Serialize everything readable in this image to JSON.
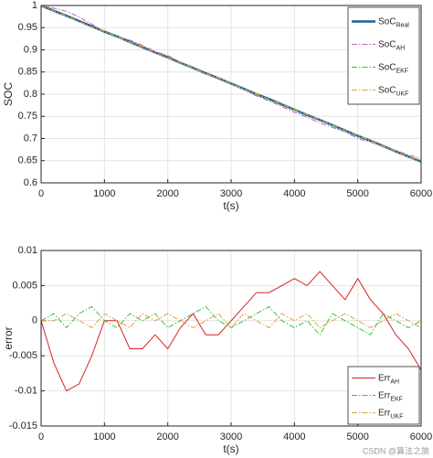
{
  "chart_data": [
    {
      "type": "line",
      "ylabel": "SOC",
      "xlabel": "t(s)",
      "x": [
        0,
        200,
        400,
        600,
        800,
        1000,
        1200,
        1400,
        1600,
        1800,
        2000,
        2200,
        2400,
        2600,
        2800,
        3000,
        3200,
        3400,
        3600,
        3800,
        4000,
        4200,
        4400,
        4600,
        4800,
        5000,
        5200,
        5400,
        5600,
        5800,
        6000
      ],
      "xlim": [
        0,
        6000
      ],
      "xticks": [
        0,
        1000,
        2000,
        3000,
        4000,
        5000,
        6000
      ],
      "ylim": [
        0.6,
        1
      ],
      "yticks": [
        0.6,
        0.65,
        0.7,
        0.75,
        0.8,
        0.85,
        0.9,
        0.95,
        1
      ],
      "grid": true,
      "legend": "upper right",
      "series": [
        {
          "name": "SoC",
          "sub": "Real",
          "color": "#1f5f9a",
          "style": "solid",
          "width": 2.5,
          "values": [
            1.0,
            0.988,
            0.977,
            0.965,
            0.953,
            0.941,
            0.93,
            0.918,
            0.906,
            0.894,
            0.883,
            0.871,
            0.859,
            0.847,
            0.836,
            0.824,
            0.812,
            0.8,
            0.789,
            0.777,
            0.765,
            0.753,
            0.742,
            0.73,
            0.718,
            0.706,
            0.695,
            0.683,
            0.671,
            0.659,
            0.648
          ]
        },
        {
          "name": "SoC",
          "sub": "AH",
          "color": "#c05ec8",
          "style": "dashdot",
          "width": 1,
          "values": [
            1.0,
            0.994,
            0.987,
            0.974,
            0.958,
            0.941,
            0.93,
            0.922,
            0.91,
            0.896,
            0.887,
            0.872,
            0.858,
            0.849,
            0.838,
            0.824,
            0.81,
            0.796,
            0.785,
            0.772,
            0.759,
            0.748,
            0.735,
            0.725,
            0.715,
            0.7,
            0.692,
            0.682,
            0.673,
            0.663,
            0.655
          ]
        },
        {
          "name": "SoC",
          "sub": "EKF",
          "color": "#33c433",
          "style": "dashdot",
          "width": 1,
          "values": [
            1.0,
            0.987,
            0.978,
            0.964,
            0.951,
            0.941,
            0.931,
            0.917,
            0.906,
            0.893,
            0.884,
            0.871,
            0.858,
            0.845,
            0.836,
            0.825,
            0.812,
            0.799,
            0.787,
            0.777,
            0.766,
            0.753,
            0.744,
            0.729,
            0.718,
            0.707,
            0.697,
            0.682,
            0.671,
            0.66,
            0.648
          ]
        },
        {
          "name": "SoC",
          "sub": "UKF",
          "color": "#e0a040",
          "style": "dashdot",
          "width": 1,
          "values": [
            1.0,
            0.988,
            0.976,
            0.964,
            0.952,
            0.942,
            0.929,
            0.918,
            0.907,
            0.894,
            0.882,
            0.872,
            0.859,
            0.846,
            0.837,
            0.824,
            0.811,
            0.801,
            0.788,
            0.778,
            0.764,
            0.754,
            0.742,
            0.731,
            0.717,
            0.707,
            0.694,
            0.684,
            0.671,
            0.658,
            0.649
          ]
        }
      ]
    },
    {
      "type": "line",
      "ylabel": "error",
      "xlabel": "t(s)",
      "x": [
        0,
        200,
        400,
        600,
        800,
        1000,
        1200,
        1400,
        1600,
        1800,
        2000,
        2200,
        2400,
        2600,
        2800,
        3000,
        3200,
        3400,
        3600,
        3800,
        4000,
        4200,
        4400,
        4600,
        4800,
        5000,
        5200,
        5400,
        5600,
        5800,
        6000
      ],
      "xlim": [
        0,
        6000
      ],
      "xticks": [
        0,
        1000,
        2000,
        3000,
        4000,
        5000,
        6000
      ],
      "ylim": [
        -0.015,
        0.01
      ],
      "yticks": [
        -0.015,
        -0.01,
        -0.005,
        0,
        0.005,
        0.01
      ],
      "grid": true,
      "legend": "lower right",
      "series": [
        {
          "name": "Err",
          "sub": "AH",
          "color": "#d62222",
          "style": "solid",
          "width": 1,
          "values": [
            0,
            -0.006,
            -0.01,
            -0.009,
            -0.005,
            0.0,
            0.0,
            -0.004,
            -0.004,
            -0.002,
            -0.004,
            -0.001,
            0.001,
            -0.002,
            -0.002,
            0.0,
            0.002,
            0.004,
            0.004,
            0.005,
            0.006,
            0.005,
            0.007,
            0.005,
            0.003,
            0.006,
            0.003,
            0.001,
            -0.002,
            -0.004,
            -0.007
          ]
        },
        {
          "name": "Err",
          "sub": "EKF",
          "color": "#33c433",
          "style": "dashdot",
          "width": 1,
          "values": [
            0,
            0.001,
            -0.001,
            0.001,
            0.002,
            0.0,
            -0.001,
            0.001,
            0.0,
            0.001,
            -0.001,
            0.0,
            0.001,
            0.002,
            0.0,
            -0.001,
            0.0,
            0.001,
            0.002,
            0.0,
            -0.001,
            0.0,
            -0.002,
            0.001,
            0.0,
            -0.001,
            -0.002,
            0.001,
            0.0,
            -0.001,
            0.0
          ]
        },
        {
          "name": "Err",
          "sub": "UKF",
          "color": "#e0a040",
          "style": "dashdot",
          "width": 1,
          "values": [
            0,
            0.0,
            0.001,
            0.0,
            -0.001,
            0.001,
            0.0,
            -0.001,
            0.001,
            0.0,
            0.001,
            0.0,
            -0.001,
            0.0,
            0.001,
            -0.001,
            0.001,
            0.0,
            -0.001,
            0.001,
            0.0,
            0.001,
            -0.001,
            0.0,
            0.001,
            0.0,
            -0.001,
            0.0,
            0.001,
            0.0,
            -0.001
          ]
        }
      ]
    }
  ],
  "watermark": "CSDN @算法之旅"
}
